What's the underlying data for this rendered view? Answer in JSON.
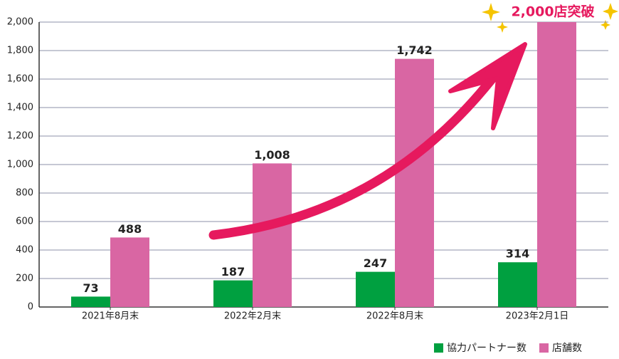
{
  "chart_data": {
    "type": "bar",
    "categories": [
      "2021年8月末",
      "2022年2月末",
      "2022年8月末",
      "2023年2月1日"
    ],
    "series": [
      {
        "name": "協力パートナー数",
        "color": "#00a040",
        "values": [
          73,
          187,
          247,
          314
        ]
      },
      {
        "name": "店舗数",
        "color": "#d966a3",
        "values": [
          488,
          1008,
          1742,
          2000
        ],
        "value_labels": [
          "488",
          "1,008",
          "1,742",
          null
        ]
      }
    ],
    "ylim": [
      0,
      2000
    ],
    "yticks": [
      0,
      200,
      400,
      600,
      800,
      {
        "value": 1000,
        "label": "1,000"
      },
      {
        "value": 1200,
        "label": "1,200"
      },
      {
        "value": 1400,
        "label": "1,400"
      },
      {
        "value": 1600,
        "label": "1,600"
      },
      {
        "value": 1800,
        "label": "1,800"
      },
      {
        "value": 2000,
        "label": "2,000"
      }
    ],
    "grid": true,
    "legend": "bottom-right",
    "annotation": "2,000店突破"
  }
}
